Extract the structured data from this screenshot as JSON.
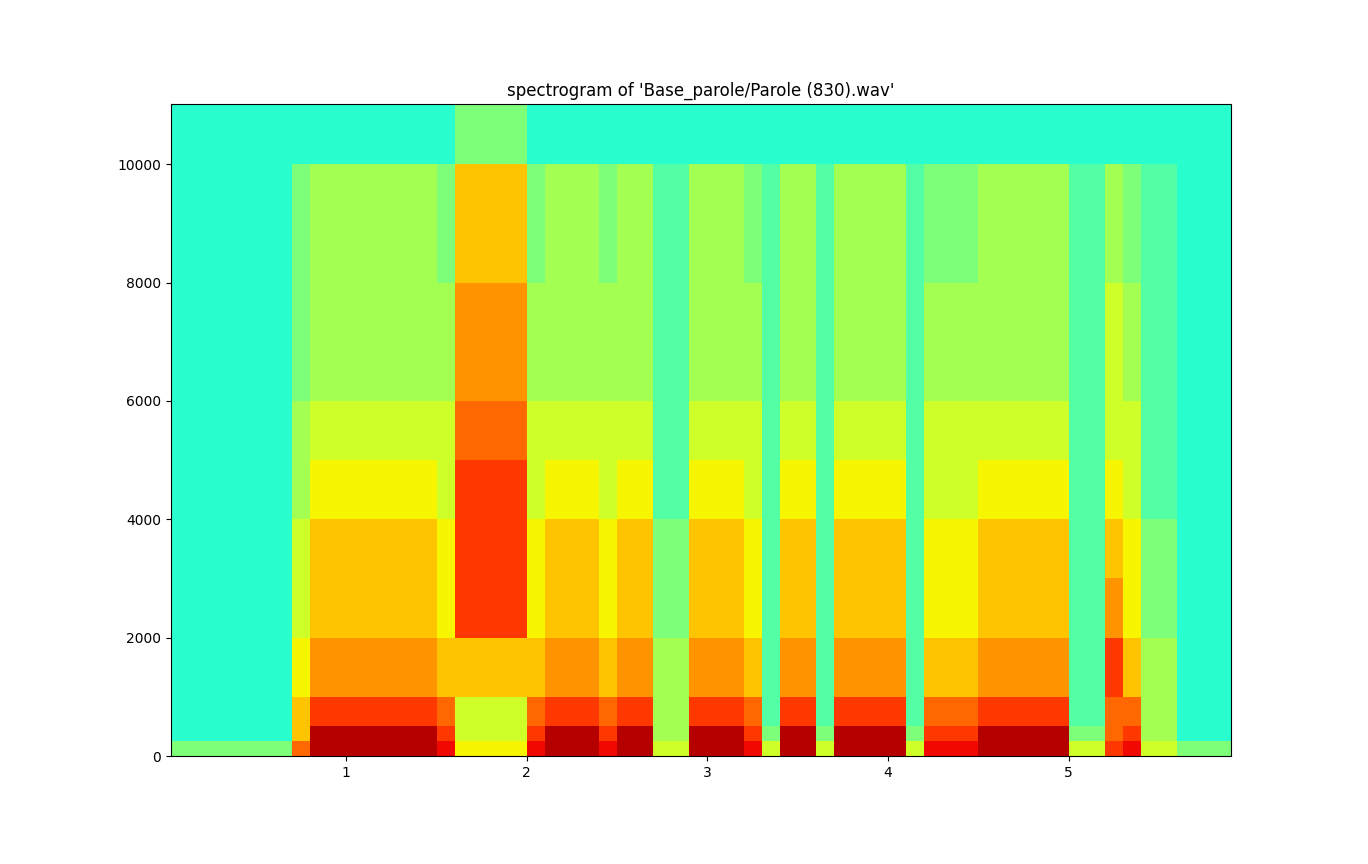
{
  "chart_data": {
    "type": "heatmap",
    "title": "spectrogram of 'Base_parole/Parole (830).wav'",
    "xlim": [
      0.03,
      5.9
    ],
    "ylim": [
      0,
      11025
    ],
    "xticks": [
      1,
      2,
      3,
      4,
      5
    ],
    "yticks": [
      0,
      2000,
      4000,
      6000,
      8000,
      10000
    ],
    "color": "jet",
    "color_range": [
      0,
      10
    ],
    "x_edges": [
      0.0,
      0.1,
      0.2,
      0.3,
      0.4,
      0.5,
      0.6,
      0.7,
      0.8,
      0.9,
      1.0,
      1.1,
      1.2,
      1.3,
      1.4,
      1.5,
      1.6,
      1.7,
      1.8,
      1.9,
      2.0,
      2.1,
      2.2,
      2.3,
      2.4,
      2.5,
      2.6,
      2.7,
      2.8,
      2.9,
      3.0,
      3.1,
      3.2,
      3.3,
      3.4,
      3.5,
      3.6,
      3.7,
      3.8,
      3.9,
      4.0,
      4.1,
      4.2,
      4.3,
      4.4,
      4.5,
      4.6,
      4.7,
      4.8,
      4.9,
      5.0,
      5.1,
      5.2,
      5.3,
      5.4,
      5.5,
      5.6,
      5.7,
      5.8,
      5.9
    ],
    "y_edges": [
      0,
      250,
      500,
      1000,
      2000,
      3000,
      4000,
      5000,
      6000,
      8000,
      10000,
      11025
    ],
    "cells": [
      [
        5,
        4,
        4,
        4,
        4,
        4,
        4,
        4,
        4,
        4,
        4
      ],
      [
        5,
        4,
        4,
        4,
        4,
        4,
        4,
        4,
        4,
        4,
        4
      ],
      [
        5,
        4,
        4,
        4,
        4,
        4,
        4,
        4,
        4,
        4,
        4
      ],
      [
        5,
        4,
        4,
        4,
        4,
        4,
        4,
        4,
        4,
        4,
        4
      ],
      [
        5,
        4,
        4,
        4,
        4,
        4,
        4,
        4,
        4,
        4,
        4
      ],
      [
        5,
        4,
        4,
        4,
        4,
        4,
        4,
        4,
        4,
        4,
        4
      ],
      [
        5,
        4,
        4,
        4,
        4,
        4,
        4,
        4,
        4,
        4,
        4
      ],
      [
        8,
        7,
        7,
        6.5,
        6,
        6,
        5.5,
        5.5,
        5,
        5,
        4
      ],
      [
        9.5,
        9.5,
        8.5,
        7.5,
        7,
        7,
        6.5,
        6,
        5.5,
        5.5,
        4
      ],
      [
        9.5,
        9.5,
        8.5,
        7.5,
        7,
        7,
        6.5,
        6,
        5.5,
        5.5,
        4
      ],
      [
        9.5,
        9.5,
        8.5,
        7.5,
        7,
        7,
        6.5,
        6,
        5.5,
        5.5,
        4
      ],
      [
        9.5,
        9.5,
        8.5,
        7.5,
        7,
        7,
        6.5,
        6,
        5.5,
        5.5,
        4
      ],
      [
        9.5,
        9.5,
        8.5,
        7.5,
        7,
        7,
        6.5,
        6,
        5.5,
        5.5,
        4
      ],
      [
        9.5,
        9.5,
        8.5,
        7.5,
        7,
        7,
        6.5,
        6,
        5.5,
        5.5,
        4
      ],
      [
        9.5,
        9.5,
        8.5,
        7.5,
        7,
        7,
        6.5,
        6,
        5.5,
        5.5,
        4
      ],
      [
        9,
        8.5,
        8,
        7,
        6.5,
        6.5,
        6,
        6,
        5.5,
        5,
        4
      ],
      [
        6.5,
        6,
        6,
        7,
        8.5,
        8.5,
        8.5,
        8,
        7.5,
        7,
        5
      ],
      [
        6.5,
        6,
        6,
        7,
        8.5,
        8.5,
        8.5,
        8,
        7.5,
        7,
        5
      ],
      [
        6.5,
        6,
        6,
        7,
        8.5,
        8.5,
        8.5,
        8,
        7.5,
        7,
        5
      ],
      [
        6.5,
        6,
        6,
        7,
        8.5,
        8.5,
        8.5,
        8,
        7.5,
        7,
        5
      ],
      [
        9,
        8.5,
        8,
        7,
        6.5,
        6.5,
        6,
        6,
        5.5,
        5,
        4
      ],
      [
        9.5,
        9.5,
        8.5,
        7.5,
        7,
        7,
        6.5,
        6,
        5.5,
        5.5,
        4
      ],
      [
        9.5,
        9.5,
        8.5,
        7.5,
        7,
        7,
        6.5,
        6,
        5.5,
        5.5,
        4
      ],
      [
        9.5,
        9.5,
        8.5,
        7.5,
        7,
        7,
        6.5,
        6,
        5.5,
        5.5,
        4
      ],
      [
        9,
        8.5,
        8,
        7,
        6.5,
        6.5,
        6,
        6,
        5.5,
        5,
        4
      ],
      [
        9.5,
        9.5,
        8.5,
        7.5,
        7,
        7,
        6.5,
        6,
        5.5,
        5.5,
        4
      ],
      [
        9.5,
        9.5,
        8.5,
        7.5,
        7,
        7,
        6.5,
        6,
        5.5,
        5.5,
        4
      ],
      [
        6,
        5.5,
        5.5,
        5.5,
        5,
        5,
        4.5,
        4.5,
        4.5,
        4.5,
        4
      ],
      [
        6,
        5.5,
        5.5,
        5.5,
        5,
        5,
        4.5,
        4.5,
        4.5,
        4.5,
        4
      ],
      [
        9.5,
        9.5,
        8.5,
        7.5,
        7,
        7,
        6.5,
        6,
        5.5,
        5.5,
        4
      ],
      [
        9.5,
        9.5,
        8.5,
        7.5,
        7,
        7,
        6.5,
        6,
        5.5,
        5.5,
        4
      ],
      [
        9.5,
        9.5,
        8.5,
        7.5,
        7,
        7,
        6.5,
        6,
        5.5,
        5.5,
        4
      ],
      [
        9,
        8.5,
        8,
        7,
        6.5,
        6.5,
        6,
        6,
        5.5,
        5,
        4
      ],
      [
        6,
        5,
        4.5,
        4.5,
        4.5,
        4.5,
        4.5,
        4.5,
        4.5,
        4.5,
        4
      ],
      [
        9.5,
        9.5,
        8.5,
        7.5,
        7,
        7,
        6.5,
        6,
        5.5,
        5.5,
        4
      ],
      [
        9.5,
        9.5,
        8.5,
        7.5,
        7,
        7,
        6.5,
        6,
        5.5,
        5.5,
        4
      ],
      [
        6,
        5,
        4.5,
        4.5,
        4.5,
        4.5,
        4.5,
        4.5,
        4.5,
        4.5,
        4
      ],
      [
        9.5,
        9.5,
        8.5,
        7.5,
        7,
        7,
        6.5,
        6,
        5.5,
        5.5,
        4
      ],
      [
        9.5,
        9.5,
        8.5,
        7.5,
        7,
        7,
        6.5,
        6,
        5.5,
        5.5,
        4
      ],
      [
        9.5,
        9.5,
        8.5,
        7.5,
        7,
        7,
        6.5,
        6,
        5.5,
        5.5,
        4
      ],
      [
        9.5,
        9.5,
        8.5,
        7.5,
        7,
        7,
        6.5,
        6,
        5.5,
        5.5,
        4
      ],
      [
        6,
        5,
        4.5,
        4.5,
        4.5,
        4.5,
        4.5,
        4.5,
        4.5,
        4.5,
        4
      ],
      [
        9,
        8.5,
        8,
        7,
        6.5,
        6.5,
        6,
        6,
        5.5,
        5,
        4
      ],
      [
        9,
        8.5,
        8,
        7,
        6.5,
        6.5,
        6,
        6,
        5.5,
        5,
        4
      ],
      [
        9,
        8.5,
        8,
        7,
        6.5,
        6.5,
        6,
        6,
        5.5,
        5,
        4
      ],
      [
        9.5,
        9.5,
        8.5,
        7.5,
        7,
        7,
        6.5,
        6,
        5.5,
        5.5,
        4
      ],
      [
        9.5,
        9.5,
        8.5,
        7.5,
        7,
        7,
        6.5,
        6,
        5.5,
        5.5,
        4
      ],
      [
        9.5,
        9.5,
        8.5,
        7.5,
        7,
        7,
        6.5,
        6,
        5.5,
        5.5,
        4
      ],
      [
        9.5,
        9.5,
        8.5,
        7.5,
        7,
        7,
        6.5,
        6,
        5.5,
        5.5,
        4
      ],
      [
        9.5,
        9.5,
        8.5,
        7.5,
        7,
        7,
        6.5,
        6,
        5.5,
        5.5,
        4
      ],
      [
        6,
        5,
        4.5,
        4.5,
        4.5,
        4.5,
        4.5,
        4.5,
        4.5,
        4.5,
        4
      ],
      [
        6,
        5,
        4.5,
        4.5,
        4.5,
        4.5,
        4.5,
        4.5,
        4.5,
        4.5,
        4
      ],
      [
        8.5,
        8,
        8,
        8.5,
        7.5,
        7,
        6.5,
        6,
        6,
        5.5,
        4
      ],
      [
        9,
        8.5,
        8,
        7,
        6.5,
        6.5,
        6,
        6,
        5.5,
        5,
        4
      ],
      [
        6,
        5.5,
        5.5,
        5.5,
        5,
        5,
        4.5,
        4.5,
        4.5,
        4.5,
        4
      ],
      [
        6,
        5.5,
        5.5,
        5.5,
        5,
        5,
        4.5,
        4.5,
        4.5,
        4.5,
        4
      ],
      [
        5,
        4,
        4,
        4,
        4,
        4,
        4,
        4,
        4,
        4,
        4
      ],
      [
        5,
        4,
        4,
        4,
        4,
        4,
        4,
        4,
        4,
        4,
        4
      ],
      [
        5,
        4,
        4,
        4,
        4,
        4,
        4,
        4,
        4,
        4,
        4
      ]
    ]
  }
}
